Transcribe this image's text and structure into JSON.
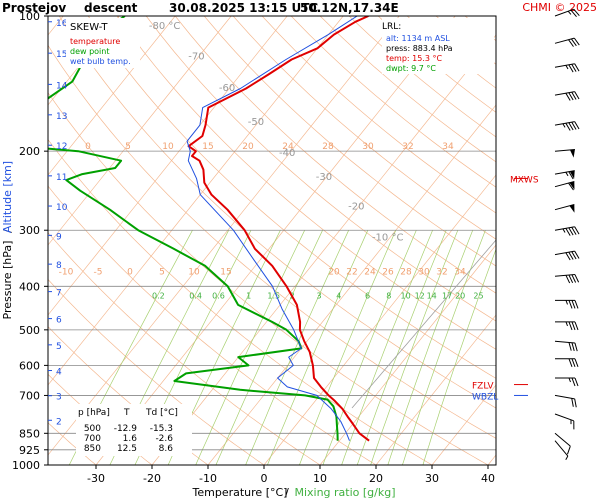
{
  "header": {
    "station": "Prostejov",
    "mode": "descent",
    "datetime": "30.08.2025 13:15 UTC",
    "coords": "50.12N,17.34E",
    "credit": "CHMI © 2025"
  },
  "legend": {
    "title": "SKEW-T",
    "items": [
      {
        "label": "temperature",
        "color": "#e00000"
      },
      {
        "label": "dew point",
        "color": "#00a000"
      },
      {
        "label": "wet bulb temp.",
        "color": "#2050e0"
      }
    ]
  },
  "lrl": {
    "title": "LRL:",
    "alt": "alt: 1134 m ASL",
    "press": "press: 883.4 hPa",
    "temp": "temp: 15.3 °C",
    "dwpt": "dwpt: 9.7 °C"
  },
  "colors": {
    "temperature": "#e00000",
    "dewpoint": "#00a000",
    "wetbulb": "#2050e0",
    "isotherm": "#f4b890",
    "mixing_ratio": "#a8d070",
    "isobar": "#888888"
  },
  "chart_data": {
    "type": "line",
    "title": "SKEW-T",
    "xlabel": "Temperature [°C]",
    "xlabel_sep": "/",
    "xlabel2": "Mixing ratio [g/kg]",
    "ylabel": "Pressure [hPa]",
    "ylabel_sep": "/",
    "ylabel2": "Altitude [km]",
    "x_ticks": [
      -30,
      -20,
      -10,
      0,
      10,
      20,
      30,
      40
    ],
    "xlim": [
      -40,
      45
    ],
    "p_ticks": [
      100,
      200,
      300,
      400,
      500,
      600,
      700,
      850,
      925,
      1000
    ],
    "ylim": [
      100,
      1000
    ],
    "y_scale": "log",
    "altitude_ticks": [
      {
        "km": "1",
        "p": 1015
      },
      {
        "km": "2",
        "p": 795
      },
      {
        "km": "3",
        "p": 701
      },
      {
        "km": "4",
        "p": 616
      },
      {
        "km": "5",
        "p": 540
      },
      {
        "km": "6",
        "p": 472
      },
      {
        "km": "7",
        "p": 411
      },
      {
        "km": "8",
        "p": 357
      },
      {
        "km": "9",
        "p": 308
      },
      {
        "km": "10",
        "p": 265
      },
      {
        "km": "11",
        "p": 227
      },
      {
        "km": "12",
        "p": 194
      },
      {
        "km": "13",
        "p": 166
      },
      {
        "km": "14",
        "p": 142
      },
      {
        "km": "15",
        "p": 121
      },
      {
        "km": "16",
        "p": 103
      }
    ],
    "isotherm_labels": [
      {
        "t": "-80 °C",
        "x": -80,
        "p": 107
      },
      {
        "t": "-70",
        "x": -70,
        "p": 125
      },
      {
        "t": "-60",
        "x": -60,
        "p": 147
      },
      {
        "t": "-50",
        "x": -50,
        "p": 175
      },
      {
        "t": "-40",
        "x": -40,
        "p": 205
      },
      {
        "t": "-30",
        "x": -30,
        "p": 232
      },
      {
        "t": "-20",
        "x": -20,
        "p": 270
      },
      {
        "t": "-10 °C",
        "x": -10,
        "p": 316
      }
    ],
    "mixing_ratio_values": [
      "0.2",
      "0.4",
      "0.6",
      "1",
      "1.5",
      "2",
      "3",
      "4",
      "6",
      "8",
      "10",
      "12",
      "14",
      "17",
      "20",
      "25"
    ],
    "theta_labels_200": [
      "0",
      "5",
      "10",
      "15",
      "20",
      "24",
      "28",
      "30",
      "32",
      "34"
    ],
    "theta_labels_380": [
      "-10",
      "-5",
      "0",
      "5",
      "10",
      "15",
      "20",
      "22",
      "24",
      "26",
      "28",
      "30",
      "32",
      "34"
    ],
    "series": [
      {
        "name": "temperature",
        "points": [
          {
            "p": 100,
            "t": -45.5
          },
          {
            "p": 103,
            "t": -47
          },
          {
            "p": 110,
            "t": -49
          },
          {
            "p": 118,
            "t": -50
          },
          {
            "p": 125,
            "t": -53
          },
          {
            "p": 135,
            "t": -55
          },
          {
            "p": 145,
            "t": -57
          },
          {
            "p": 160,
            "t": -61
          },
          {
            "p": 175,
            "t": -59
          },
          {
            "p": 185,
            "t": -58
          },
          {
            "p": 195,
            "t": -59
          },
          {
            "p": 200,
            "t": -57
          },
          {
            "p": 205,
            "t": -57
          },
          {
            "p": 210,
            "t": -55
          },
          {
            "p": 220,
            "t": -53
          },
          {
            "p": 235,
            "t": -51
          },
          {
            "p": 250,
            "t": -48
          },
          {
            "p": 270,
            "t": -43
          },
          {
            "p": 300,
            "t": -37
          },
          {
            "p": 330,
            "t": -32.5
          },
          {
            "p": 360,
            "t": -27
          },
          {
            "p": 400,
            "t": -21.5
          },
          {
            "p": 440,
            "t": -17
          },
          {
            "p": 480,
            "t": -14
          },
          {
            "p": 500,
            "t": -12.9
          },
          {
            "p": 530,
            "t": -10.5
          },
          {
            "p": 560,
            "t": -8
          },
          {
            "p": 600,
            "t": -5.5
          },
          {
            "p": 640,
            "t": -3.5
          },
          {
            "p": 670,
            "t": -1
          },
          {
            "p": 700,
            "t": 1.6
          },
          {
            "p": 720,
            "t": 3.5
          },
          {
            "p": 750,
            "t": 6
          },
          {
            "p": 780,
            "t": 8
          },
          {
            "p": 810,
            "t": 10
          },
          {
            "p": 850,
            "t": 12.5
          },
          {
            "p": 883,
            "t": 15.3
          }
        ]
      },
      {
        "name": "dew point",
        "points": [
          {
            "p": 100,
            "t": -89
          },
          {
            "p": 110,
            "t": -91
          },
          {
            "p": 125,
            "t": -90
          },
          {
            "p": 140,
            "t": -89
          },
          {
            "p": 160,
            "t": -92
          },
          {
            "p": 180,
            "t": -92
          },
          {
            "p": 195,
            "t": -89
          },
          {
            "p": 200,
            "t": -78
          },
          {
            "p": 210,
            "t": -69
          },
          {
            "p": 218,
            "t": -69
          },
          {
            "p": 225,
            "t": -74
          },
          {
            "p": 232,
            "t": -76
          },
          {
            "p": 245,
            "t": -72
          },
          {
            "p": 270,
            "t": -64
          },
          {
            "p": 300,
            "t": -56
          },
          {
            "p": 330,
            "t": -47
          },
          {
            "p": 360,
            "t": -39
          },
          {
            "p": 400,
            "t": -32
          },
          {
            "p": 440,
            "t": -27.5
          },
          {
            "p": 480,
            "t": -19
          },
          {
            "p": 500,
            "t": -15.3
          },
          {
            "p": 530,
            "t": -11.5
          },
          {
            "p": 550,
            "t": -10
          },
          {
            "p": 575,
            "t": -20
          },
          {
            "p": 600,
            "t": -17
          },
          {
            "p": 625,
            "t": -27
          },
          {
            "p": 650,
            "t": -28
          },
          {
            "p": 680,
            "t": -15
          },
          {
            "p": 700,
            "t": -2.6
          },
          {
            "p": 715,
            "t": 2
          },
          {
            "p": 740,
            "t": 4
          },
          {
            "p": 780,
            "t": 6
          },
          {
            "p": 820,
            "t": 7.5
          },
          {
            "p": 850,
            "t": 8.6
          },
          {
            "p": 883,
            "t": 9.7
          }
        ]
      },
      {
        "name": "wet bulb temp.",
        "points": [
          {
            "p": 100,
            "t": -47.5
          },
          {
            "p": 110,
            "t": -50
          },
          {
            "p": 125,
            "t": -54
          },
          {
            "p": 145,
            "t": -58
          },
          {
            "p": 160,
            "t": -62
          },
          {
            "p": 175,
            "t": -60
          },
          {
            "p": 190,
            "t": -60
          },
          {
            "p": 200,
            "t": -58
          },
          {
            "p": 210,
            "t": -57
          },
          {
            "p": 230,
            "t": -53
          },
          {
            "p": 250,
            "t": -50
          },
          {
            "p": 300,
            "t": -39
          },
          {
            "p": 350,
            "t": -31
          },
          {
            "p": 400,
            "t": -24
          },
          {
            "p": 450,
            "t": -19
          },
          {
            "p": 500,
            "t": -14
          },
          {
            "p": 550,
            "t": -10
          },
          {
            "p": 575,
            "t": -11
          },
          {
            "p": 600,
            "t": -9
          },
          {
            "p": 640,
            "t": -10
          },
          {
            "p": 670,
            "t": -7
          },
          {
            "p": 700,
            "t": -0.5
          },
          {
            "p": 750,
            "t": 4
          },
          {
            "p": 800,
            "t": 7.5
          },
          {
            "p": 850,
            "t": 10.2
          },
          {
            "p": 883,
            "t": 11.8
          }
        ]
      }
    ],
    "stats_table": {
      "headers": [
        "p [hPa]",
        "T",
        "Td [°C]"
      ],
      "rows": [
        [
          "500",
          "-12.9",
          "-15.3"
        ],
        [
          "700",
          "1.6",
          "-2.6"
        ],
        [
          "850",
          "12.5",
          "8.6"
        ]
      ]
    },
    "markers": [
      {
        "label": "MXWS",
        "p": 230,
        "color": "#e00000"
      },
      {
        "label": "FZLV",
        "p": 662,
        "color": "#e00000"
      },
      {
        "label": "WBZL",
        "p": 700,
        "color": "#2050e0"
      }
    ],
    "wind_barbs": [
      {
        "p": 100,
        "dir": 250,
        "kt": 25
      },
      {
        "p": 115,
        "dir": 255,
        "kt": 30
      },
      {
        "p": 130,
        "dir": 260,
        "kt": 35
      },
      {
        "p": 150,
        "dir": 260,
        "kt": 40
      },
      {
        "p": 175,
        "dir": 260,
        "kt": 45
      },
      {
        "p": 200,
        "dir": 265,
        "kt": 50
      },
      {
        "p": 225,
        "dir": 260,
        "kt": 65
      },
      {
        "p": 240,
        "dir": 255,
        "kt": 60
      },
      {
        "p": 270,
        "dir": 255,
        "kt": 50
      },
      {
        "p": 300,
        "dir": 260,
        "kt": 45
      },
      {
        "p": 340,
        "dir": 260,
        "kt": 40
      },
      {
        "p": 380,
        "dir": 265,
        "kt": 40
      },
      {
        "p": 430,
        "dir": 270,
        "kt": 35
      },
      {
        "p": 480,
        "dir": 270,
        "kt": 35
      },
      {
        "p": 530,
        "dir": 275,
        "kt": 30
      },
      {
        "p": 580,
        "dir": 270,
        "kt": 30
      },
      {
        "p": 640,
        "dir": 270,
        "kt": 25
      },
      {
        "p": 700,
        "dir": 280,
        "kt": 20
      },
      {
        "p": 770,
        "dir": 290,
        "kt": 15
      },
      {
        "p": 850,
        "dir": 310,
        "kt": 10
      },
      {
        "p": 883,
        "dir": 320,
        "kt": 5
      }
    ]
  }
}
